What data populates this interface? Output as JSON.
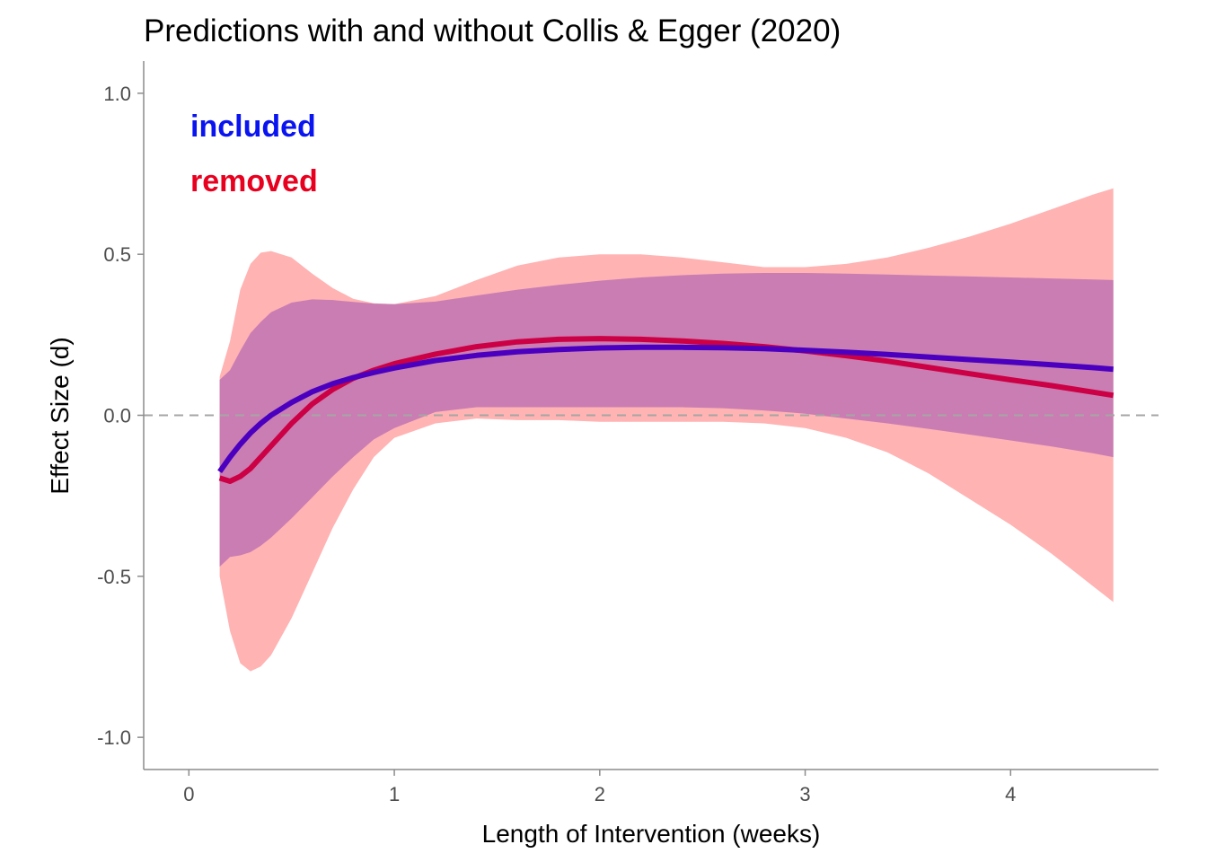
{
  "chart_data": {
    "type": "line",
    "title": "Predictions with and without Collis & Egger (2020)",
    "xlabel": "Length of Intervention (weeks)",
    "ylabel": "Effect Size (d)",
    "xlim": [
      -0.22,
      4.72
    ],
    "ylim": [
      -1.1,
      1.1
    ],
    "x_ticks": [
      0,
      1,
      2,
      3,
      4
    ],
    "x_tick_labels": [
      "0",
      "1",
      "2",
      "3",
      "4"
    ],
    "y_ticks": [
      -1.0,
      -0.5,
      0.0,
      0.5,
      1.0
    ],
    "y_tick_labels": [
      "-1.0",
      "-0.5",
      "0.0",
      "0.5",
      "1.0"
    ],
    "grid": false,
    "reference_line": {
      "y": 0,
      "style": "dashed",
      "color": "#a6a6a6"
    },
    "legend_placement": "top-left",
    "series": [
      {
        "name": "removed",
        "color": "#e8001f",
        "line_color": "#cc0044",
        "band_color": "#ffb3b3",
        "x": [
          0.15,
          0.2,
          0.25,
          0.3,
          0.35,
          0.4,
          0.5,
          0.6,
          0.7,
          0.8,
          0.9,
          1.0,
          1.2,
          1.4,
          1.6,
          1.8,
          2.0,
          2.2,
          2.4,
          2.6,
          2.8,
          3.0,
          3.2,
          3.4,
          3.6,
          3.8,
          4.0,
          4.2,
          4.4,
          4.5
        ],
        "y": [
          -0.195,
          -0.205,
          -0.19,
          -0.165,
          -0.13,
          -0.095,
          -0.025,
          0.035,
          0.08,
          0.115,
          0.14,
          0.16,
          0.19,
          0.213,
          0.228,
          0.236,
          0.238,
          0.236,
          0.231,
          0.223,
          0.213,
          0.2,
          0.185,
          0.168,
          0.149,
          0.129,
          0.11,
          0.092,
          0.072,
          0.062
        ],
        "lower": [
          -0.5,
          -0.67,
          -0.77,
          -0.795,
          -0.78,
          -0.745,
          -0.63,
          -0.49,
          -0.35,
          -0.23,
          -0.13,
          -0.07,
          -0.025,
          -0.01,
          -0.015,
          -0.015,
          -0.02,
          -0.02,
          -0.02,
          -0.02,
          -0.025,
          -0.04,
          -0.07,
          -0.115,
          -0.18,
          -0.26,
          -0.34,
          -0.43,
          -0.53,
          -0.58
        ],
        "upper": [
          0.12,
          0.23,
          0.39,
          0.47,
          0.505,
          0.51,
          0.49,
          0.44,
          0.395,
          0.362,
          0.348,
          0.345,
          0.37,
          0.42,
          0.465,
          0.49,
          0.5,
          0.5,
          0.49,
          0.475,
          0.46,
          0.46,
          0.47,
          0.49,
          0.52,
          0.555,
          0.595,
          0.64,
          0.685,
          0.705
        ]
      },
      {
        "name": "included",
        "color": "#0a14f0",
        "line_color": "#4b00bf",
        "band_color": "#c97db3",
        "x": [
          0.15,
          0.2,
          0.25,
          0.3,
          0.35,
          0.4,
          0.5,
          0.6,
          0.7,
          0.8,
          0.9,
          1.0,
          1.2,
          1.4,
          1.6,
          1.8,
          2.0,
          2.2,
          2.4,
          2.6,
          2.8,
          3.0,
          3.2,
          3.4,
          3.6,
          3.8,
          4.0,
          4.2,
          4.4,
          4.5
        ],
        "y": [
          -0.175,
          -0.13,
          -0.09,
          -0.055,
          -0.025,
          0.0,
          0.04,
          0.073,
          0.098,
          0.117,
          0.133,
          0.147,
          0.17,
          0.186,
          0.197,
          0.204,
          0.209,
          0.211,
          0.211,
          0.21,
          0.207,
          0.202,
          0.196,
          0.189,
          0.181,
          0.173,
          0.165,
          0.157,
          0.148,
          0.143
        ],
        "lower": [
          -0.47,
          -0.44,
          -0.435,
          -0.425,
          -0.405,
          -0.38,
          -0.32,
          -0.255,
          -0.19,
          -0.13,
          -0.075,
          -0.04,
          0.01,
          0.025,
          0.025,
          0.025,
          0.025,
          0.025,
          0.025,
          0.022,
          0.015,
          0.005,
          -0.01,
          -0.025,
          -0.042,
          -0.06,
          -0.078,
          -0.097,
          -0.118,
          -0.13
        ],
        "upper": [
          0.11,
          0.14,
          0.2,
          0.255,
          0.29,
          0.32,
          0.35,
          0.36,
          0.358,
          0.352,
          0.347,
          0.345,
          0.353,
          0.372,
          0.39,
          0.405,
          0.418,
          0.428,
          0.435,
          0.44,
          0.442,
          0.442,
          0.44,
          0.437,
          0.434,
          0.431,
          0.428,
          0.425,
          0.422,
          0.42
        ]
      }
    ],
    "legend": [
      {
        "label": "included",
        "color": "#0a14f0"
      },
      {
        "label": "removed",
        "color": "#e8001f"
      }
    ]
  }
}
